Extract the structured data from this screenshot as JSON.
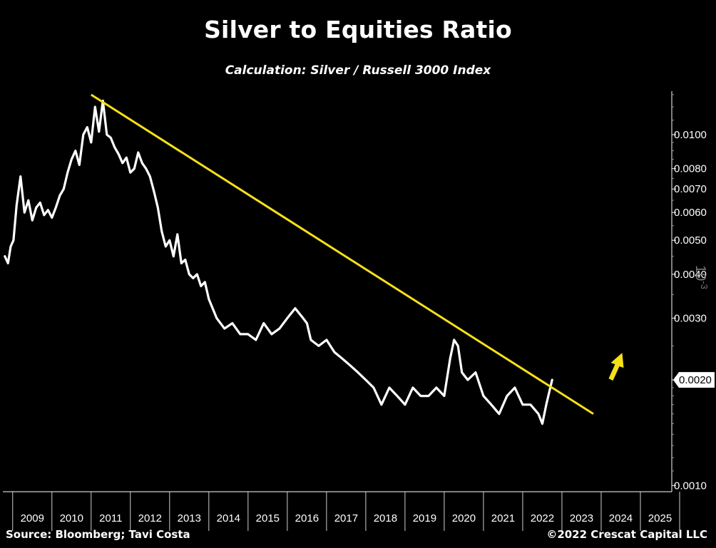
{
  "title": "Silver to Equities Ratio",
  "subtitle": "Calculation: Silver / Russell 3000 Index",
  "source": "Source: Bloomberg; Tavi Costa",
  "copyright": "©2022 Crescat Capital LLC",
  "watermark": "10^-3",
  "colors": {
    "background": "#000000",
    "series": "#ffffff",
    "trendline": "#f5e11a",
    "arrow": "#f5e11a",
    "axis": "#ffffff"
  },
  "chart_data": {
    "type": "line",
    "title": "Silver to Equities Ratio",
    "subtitle": "Calculation: Silver / Russell 3000 Index",
    "y_scale": "log",
    "ylim": [
      0.00096,
      0.0133
    ],
    "xlim": [
      2008.75,
      2025.8
    ],
    "x_ticks": [
      "2009",
      "2010",
      "2011",
      "2012",
      "2013",
      "2014",
      "2015",
      "2016",
      "2017",
      "2018",
      "2019",
      "2020",
      "2021",
      "2022",
      "2023",
      "2024",
      "2025"
    ],
    "y_ticks": [
      "0.0010",
      "0.0020",
      "0.0030",
      "0.0040",
      "0.0050",
      "0.0060",
      "0.0070",
      "0.0080",
      "0.0100"
    ],
    "last_value_label": "0.0020",
    "grid": false,
    "series": [
      {
        "x": [
          2008.8,
          2008.88,
          2008.95,
          2009.02,
          2009.1,
          2009.2,
          2009.3,
          2009.4,
          2009.5,
          2009.6,
          2009.7,
          2009.8,
          2009.9,
          2010.0,
          2010.1,
          2010.2,
          2010.3,
          2010.4,
          2010.5,
          2010.6,
          2010.7,
          2010.8,
          2010.9,
          2011.0,
          2011.1,
          2011.2,
          2011.3,
          2011.4,
          2011.5,
          2011.6,
          2011.7,
          2011.8,
          2011.9,
          2012.0,
          2012.1,
          2012.2,
          2012.3,
          2012.4,
          2012.5,
          2012.6,
          2012.7,
          2012.8,
          2012.9,
          2013.0,
          2013.1,
          2013.2,
          2013.3,
          2013.4,
          2013.5,
          2013.6,
          2013.7,
          2013.8,
          2013.9,
          2014.0,
          2014.2,
          2014.4,
          2014.6,
          2014.8,
          2015.0,
          2015.2,
          2015.4,
          2015.6,
          2015.8,
          2016.0,
          2016.2,
          2016.4,
          2016.5,
          2016.6,
          2016.8,
          2017.0,
          2017.2,
          2017.4,
          2017.6,
          2017.8,
          2018.0,
          2018.2,
          2018.4,
          2018.6,
          2018.8,
          2019.0,
          2019.2,
          2019.4,
          2019.6,
          2019.8,
          2020.0,
          2020.15,
          2020.25,
          2020.35,
          2020.45,
          2020.6,
          2020.8,
          2021.0,
          2021.2,
          2021.4,
          2021.6,
          2021.8,
          2022.0,
          2022.2,
          2022.4,
          2022.5,
          2022.6,
          2022.75
        ],
        "values": [
          0.0045,
          0.0043,
          0.0048,
          0.005,
          0.0063,
          0.0076,
          0.006,
          0.0065,
          0.0057,
          0.0062,
          0.0064,
          0.0059,
          0.0061,
          0.0058,
          0.0062,
          0.0067,
          0.007,
          0.0078,
          0.0085,
          0.009,
          0.0082,
          0.01,
          0.0105,
          0.0095,
          0.012,
          0.0102,
          0.0125,
          0.01,
          0.0098,
          0.0092,
          0.0088,
          0.0083,
          0.0086,
          0.0078,
          0.008,
          0.0089,
          0.0083,
          0.008,
          0.0076,
          0.0069,
          0.0062,
          0.0053,
          0.0048,
          0.005,
          0.0045,
          0.0052,
          0.0043,
          0.0044,
          0.004,
          0.0039,
          0.004,
          0.0037,
          0.0038,
          0.0034,
          0.003,
          0.0028,
          0.0029,
          0.0027,
          0.0027,
          0.0026,
          0.0029,
          0.0027,
          0.0028,
          0.003,
          0.0032,
          0.003,
          0.0029,
          0.0026,
          0.0025,
          0.0026,
          0.0024,
          0.0023,
          0.0022,
          0.0021,
          0.002,
          0.0019,
          0.0017,
          0.0019,
          0.0018,
          0.0017,
          0.0019,
          0.0018,
          0.0018,
          0.0019,
          0.0018,
          0.0023,
          0.0026,
          0.0025,
          0.0021,
          0.002,
          0.0021,
          0.0018,
          0.0017,
          0.0016,
          0.0018,
          0.0019,
          0.0017,
          0.0017,
          0.0016,
          0.0015,
          0.0017,
          0.002
        ]
      }
    ],
    "trendline": {
      "x": [
        2011.0,
        2023.8
      ],
      "values": [
        0.013,
        0.0016
      ]
    },
    "annotation": {
      "type": "up-arrow",
      "x": 2024.3,
      "y": 0.002
    }
  }
}
